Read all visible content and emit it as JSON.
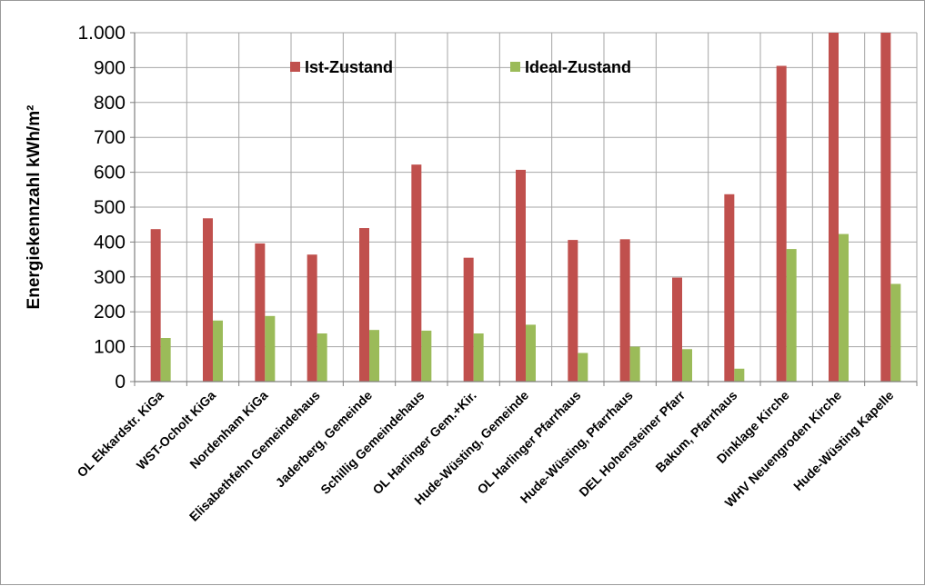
{
  "chart_data": {
    "type": "bar",
    "title": "",
    "xlabel": "",
    "ylabel": "Energiekennzahl kWh/m²",
    "ylim": [
      0,
      1000
    ],
    "yticks": [
      0,
      100,
      200,
      300,
      400,
      500,
      600,
      700,
      800,
      900,
      1000
    ],
    "ytick_labels": [
      "0",
      "100",
      "200",
      "300",
      "400",
      "500",
      "600",
      "700",
      "800",
      "900",
      "1.000"
    ],
    "grid": "vertical",
    "legend_position": "top",
    "categories": [
      "OL Ekkardstr. KiGa",
      "WST-Ocholt KiGa",
      "Nordenham KiGa",
      "Elisabethfehn Gemeindehaus",
      "Jaderberg, Gemeinde",
      "Schillig Gemeindehaus",
      "OL Harlinger Gem.+Kir.",
      "Hude-Wüsting, Gemeinde",
      "OL Harlinger Pfarrhaus",
      "Hude-Wüsting, Pfarrhaus",
      "DEL Hohensteiner Pfarr",
      "Bakum, Pfarrhaus",
      "Dinklage Kirche",
      "WHV Neuengroden Kirche",
      "Hude-Wüsting Kapelle"
    ],
    "series": [
      {
        "name": "Ist-Zustand",
        "color": "#c0504d",
        "values": [
          437,
          468,
          396,
          364,
          440,
          622,
          355,
          607,
          406,
          408,
          298,
          537,
          905,
          1000,
          1000
        ]
      },
      {
        "name": "Ideal-Zustand",
        "color": "#9bbb59",
        "values": [
          125,
          175,
          188,
          138,
          148,
          146,
          138,
          163,
          82,
          100,
          93,
          37,
          380,
          423,
          280
        ]
      }
    ]
  }
}
